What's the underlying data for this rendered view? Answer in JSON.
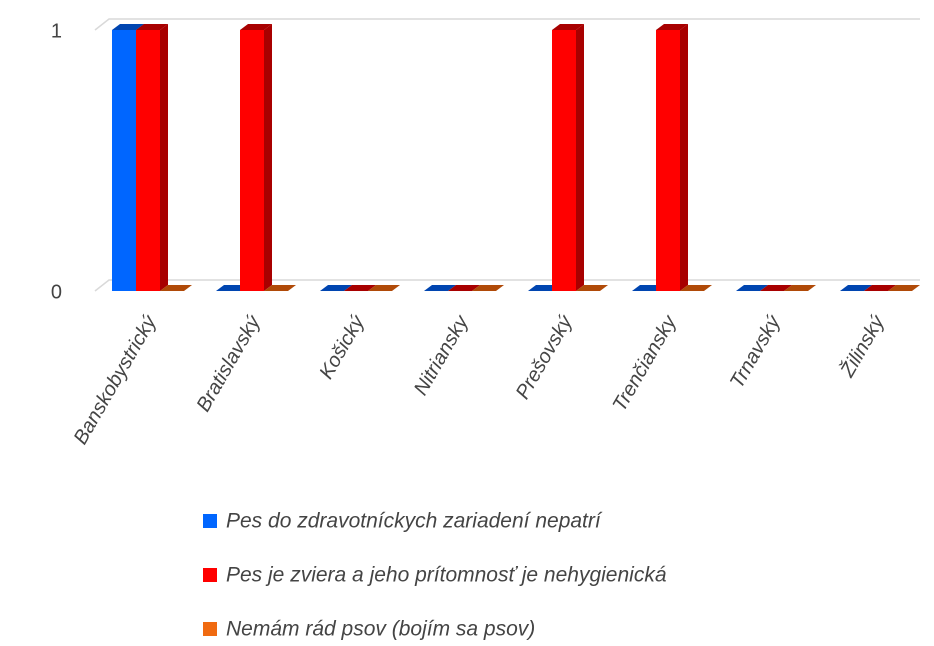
{
  "chart_data": {
    "type": "bar3d",
    "categories": [
      "Banskobystrický",
      "Bratislavský",
      "Košický",
      "Nitriansky",
      "Prešovský",
      "Trenčiansky",
      "Trnavský",
      "Žilinský"
    ],
    "series": [
      {
        "name": "Pes do zdravotníckych zariadení nepatrí",
        "color": "#0066ff",
        "side": "#0045b0",
        "values": [
          1,
          0,
          0,
          0,
          0,
          0,
          0,
          0
        ]
      },
      {
        "name": "Pes je zviera a jeho prítomnosť je nehygienická",
        "color": "#ff0000",
        "side": "#a80000",
        "values": [
          1,
          1,
          0,
          0,
          1,
          1,
          0,
          0
        ]
      },
      {
        "name": "Nemám rád psov (bojím sa psov)",
        "color": "#f06a10",
        "side": "#b04a08",
        "values": [
          0,
          0,
          0,
          0,
          0,
          0,
          0,
          0
        ]
      }
    ],
    "ylim": [
      0,
      1
    ],
    "yticks": [
      0,
      1
    ],
    "grid": true,
    "legend": "bottom"
  }
}
